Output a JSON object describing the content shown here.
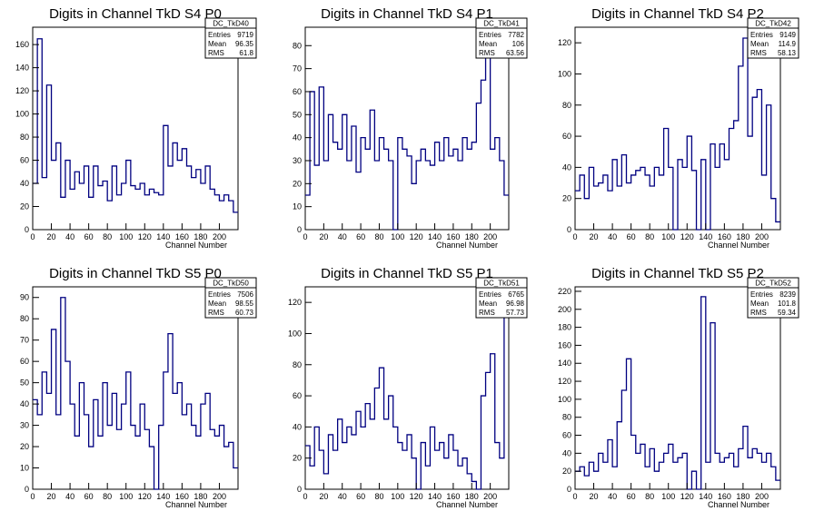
{
  "colors": {
    "line": "#000080",
    "frame": "#000000",
    "background": "#ffffff"
  },
  "stat_labels": {
    "entries": "Entries",
    "mean": "Mean",
    "rms": "RMS"
  },
  "chart_data": [
    {
      "type": "line",
      "title": "Digits in Channel TkD S4 P0",
      "xlabel": "Channel Number",
      "ylabel": "",
      "xlim": [
        0,
        220
      ],
      "ylim": [
        0,
        175
      ],
      "xticks": [
        0,
        20,
        40,
        60,
        80,
        100,
        120,
        140,
        160,
        180,
        200
      ],
      "yticks": [
        0,
        20,
        40,
        60,
        80,
        100,
        120,
        140,
        160
      ],
      "stats": {
        "name": "DC_TkD40",
        "entries": "9719",
        "mean": "96.35",
        "rms": "61.8"
      },
      "x": [
        0,
        5,
        10,
        15,
        20,
        25,
        30,
        35,
        40,
        45,
        50,
        55,
        60,
        65,
        70,
        75,
        80,
        85,
        90,
        95,
        100,
        105,
        110,
        115,
        120,
        125,
        130,
        135,
        140,
        145,
        150,
        155,
        160,
        165,
        170,
        175,
        180,
        185,
        190,
        195,
        200,
        205,
        210,
        215
      ],
      "values": [
        40,
        165,
        45,
        125,
        60,
        75,
        28,
        60,
        35,
        50,
        40,
        55,
        28,
        55,
        38,
        42,
        25,
        55,
        30,
        40,
        60,
        38,
        35,
        40,
        30,
        35,
        32,
        30,
        90,
        55,
        75,
        60,
        70,
        55,
        45,
        52,
        40,
        55,
        35,
        30,
        25,
        30,
        25,
        15
      ]
    },
    {
      "type": "line",
      "title": "Digits in Channel TkD S4 P1",
      "xlabel": "Channel Number",
      "ylabel": "",
      "xlim": [
        0,
        220
      ],
      "ylim": [
        0,
        88
      ],
      "xticks": [
        0,
        20,
        40,
        60,
        80,
        100,
        120,
        140,
        160,
        180,
        200
      ],
      "yticks": [
        0,
        10,
        20,
        30,
        40,
        50,
        60,
        70,
        80
      ],
      "stats": {
        "name": "DC_TkD41",
        "entries": "7782",
        "mean": "106",
        "rms": "63.56"
      },
      "x": [
        0,
        5,
        10,
        15,
        20,
        25,
        30,
        35,
        40,
        45,
        50,
        55,
        60,
        65,
        70,
        75,
        80,
        85,
        90,
        95,
        100,
        105,
        110,
        115,
        120,
        125,
        130,
        135,
        140,
        145,
        150,
        155,
        160,
        165,
        170,
        175,
        180,
        185,
        190,
        195,
        200,
        205,
        210,
        215
      ],
      "values": [
        15,
        60,
        28,
        62,
        30,
        50,
        38,
        35,
        50,
        30,
        45,
        25,
        40,
        35,
        52,
        30,
        40,
        35,
        30,
        0,
        40,
        35,
        32,
        20,
        30,
        35,
        30,
        28,
        38,
        30,
        40,
        32,
        35,
        30,
        40,
        35,
        38,
        55,
        65,
        77,
        35,
        40,
        30,
        15
      ]
    },
    {
      "type": "line",
      "title": "Digits in Channel TkD S4 P2",
      "xlabel": "Channel Number",
      "ylabel": "",
      "xlim": [
        0,
        220
      ],
      "ylim": [
        0,
        130
      ],
      "xticks": [
        0,
        20,
        40,
        60,
        80,
        100,
        120,
        140,
        160,
        180,
        200
      ],
      "yticks": [
        0,
        20,
        40,
        60,
        80,
        100,
        120
      ],
      "stats": {
        "name": "DC_TkD42",
        "entries": "9149",
        "mean": "114.9",
        "rms": "58.13"
      },
      "x": [
        0,
        5,
        10,
        15,
        20,
        25,
        30,
        35,
        40,
        45,
        50,
        55,
        60,
        65,
        70,
        75,
        80,
        85,
        90,
        95,
        100,
        105,
        110,
        115,
        120,
        125,
        130,
        135,
        140,
        145,
        150,
        155,
        160,
        165,
        170,
        175,
        180,
        185,
        190,
        195,
        200,
        205,
        210,
        215
      ],
      "values": [
        25,
        35,
        20,
        40,
        28,
        30,
        35,
        25,
        45,
        28,
        48,
        30,
        35,
        38,
        40,
        35,
        28,
        40,
        35,
        65,
        40,
        0,
        45,
        40,
        60,
        38,
        0,
        45,
        0,
        55,
        40,
        55,
        45,
        65,
        70,
        105,
        123,
        60,
        85,
        90,
        35,
        80,
        20,
        5
      ]
    },
    {
      "type": "line",
      "title": "Digits in Channel TkD S5 P0",
      "xlabel": "Channel Number",
      "ylabel": "",
      "xlim": [
        0,
        220
      ],
      "ylim": [
        0,
        95
      ],
      "xticks": [
        0,
        20,
        40,
        60,
        80,
        100,
        120,
        140,
        160,
        180,
        200
      ],
      "yticks": [
        0,
        10,
        20,
        30,
        40,
        50,
        60,
        70,
        80,
        90
      ],
      "stats": {
        "name": "DC_TkD50",
        "entries": "7506",
        "mean": "98.55",
        "rms": "60.73"
      },
      "x": [
        0,
        5,
        10,
        15,
        20,
        25,
        30,
        35,
        40,
        45,
        50,
        55,
        60,
        65,
        70,
        75,
        80,
        85,
        90,
        95,
        100,
        105,
        110,
        115,
        120,
        125,
        130,
        135,
        140,
        145,
        150,
        155,
        160,
        165,
        170,
        175,
        180,
        185,
        190,
        195,
        200,
        205,
        210,
        215
      ],
      "values": [
        42,
        35,
        55,
        45,
        75,
        35,
        90,
        60,
        40,
        25,
        50,
        35,
        20,
        42,
        25,
        50,
        30,
        45,
        28,
        40,
        55,
        30,
        25,
        40,
        28,
        20,
        0,
        30,
        55,
        73,
        45,
        50,
        35,
        40,
        30,
        25,
        40,
        45,
        28,
        25,
        30,
        20,
        22,
        10
      ]
    },
    {
      "type": "line",
      "title": "Digits in Channel TkD S5 P1",
      "xlabel": "Channel Number",
      "ylabel": "",
      "xlim": [
        0,
        220
      ],
      "ylim": [
        0,
        130
      ],
      "xticks": [
        0,
        20,
        40,
        60,
        80,
        100,
        120,
        140,
        160,
        180,
        200
      ],
      "yticks": [
        0,
        20,
        40,
        60,
        80,
        100,
        120
      ],
      "stats": {
        "name": "DC_TkD51",
        "entries": "6765",
        "mean": "96.98",
        "rms": "57.73"
      },
      "x": [
        0,
        5,
        10,
        15,
        20,
        25,
        30,
        35,
        40,
        45,
        50,
        55,
        60,
        65,
        70,
        75,
        80,
        85,
        90,
        95,
        100,
        105,
        110,
        115,
        120,
        125,
        130,
        135,
        140,
        145,
        150,
        155,
        160,
        165,
        170,
        175,
        180,
        185,
        190,
        195,
        200,
        205,
        210,
        215
      ],
      "values": [
        28,
        15,
        40,
        25,
        10,
        35,
        25,
        45,
        30,
        40,
        35,
        50,
        40,
        55,
        45,
        65,
        78,
        45,
        60,
        40,
        30,
        25,
        35,
        20,
        0,
        30,
        15,
        40,
        25,
        30,
        20,
        35,
        25,
        15,
        20,
        10,
        5,
        0,
        60,
        75,
        87,
        30,
        20,
        128
      ]
    },
    {
      "type": "line",
      "title": "Digits in Channel TkD S5 P2",
      "xlabel": "Channel Number",
      "ylabel": "",
      "xlim": [
        0,
        220
      ],
      "ylim": [
        0,
        225
      ],
      "xticks": [
        0,
        20,
        40,
        60,
        80,
        100,
        120,
        140,
        160,
        180,
        200
      ],
      "yticks": [
        0,
        20,
        40,
        60,
        80,
        100,
        120,
        140,
        160,
        180,
        200,
        220
      ],
      "stats": {
        "name": "DC_TkD52",
        "entries": "8239",
        "mean": "101.8",
        "rms": "59.34"
      },
      "x": [
        0,
        5,
        10,
        15,
        20,
        25,
        30,
        35,
        40,
        45,
        50,
        55,
        60,
        65,
        70,
        75,
        80,
        85,
        90,
        95,
        100,
        105,
        110,
        115,
        120,
        125,
        130,
        135,
        140,
        145,
        150,
        155,
        160,
        165,
        170,
        175,
        180,
        185,
        190,
        195,
        200,
        205,
        210,
        215
      ],
      "values": [
        20,
        25,
        15,
        30,
        20,
        40,
        30,
        55,
        25,
        75,
        110,
        145,
        60,
        40,
        50,
        25,
        45,
        20,
        30,
        40,
        50,
        30,
        35,
        40,
        0,
        20,
        0,
        214,
        30,
        185,
        40,
        30,
        35,
        40,
        25,
        45,
        70,
        35,
        45,
        40,
        30,
        40,
        25,
        10
      ]
    }
  ]
}
